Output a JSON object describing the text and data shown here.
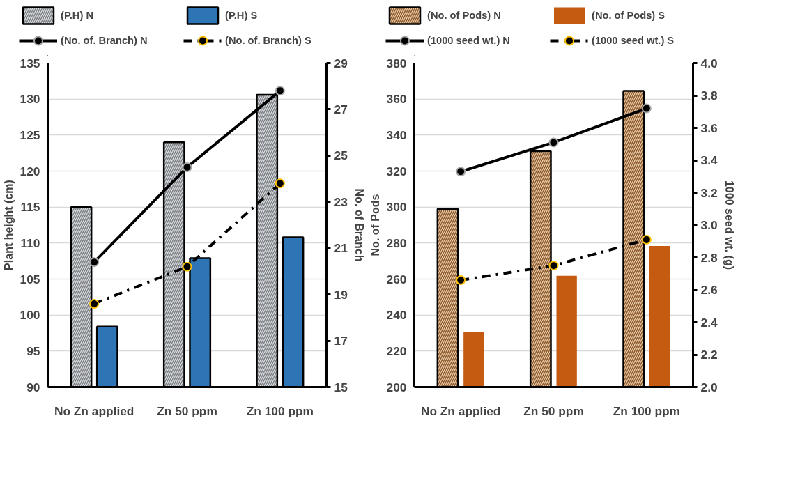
{
  "chart_data": [
    {
      "type": "bar",
      "categories": [
        "No Zn applied",
        "Zn 50 ppm",
        "Zn 100 ppm"
      ],
      "ylabel": "Plant height (cm)",
      "y2label": "No. of Branch",
      "ylim": [
        90,
        135
      ],
      "yticks": [
        90,
        95,
        100,
        105,
        110,
        115,
        120,
        125,
        130,
        135
      ],
      "y2lim": [
        15,
        29
      ],
      "y2ticks": [
        15,
        17,
        19,
        21,
        23,
        25,
        27,
        29
      ],
      "grid": "y",
      "legend": "top",
      "series": [
        {
          "name": "(P.H) N",
          "color": "#d6dce5",
          "values": [
            115,
            124,
            130.6
          ]
        },
        {
          "name": "(P.H) S",
          "color": "#2e75b6",
          "values": [
            98.4,
            107.9,
            110.8
          ]
        },
        {
          "name": "(No. of. Branch) N",
          "type": "line",
          "axis": "y2",
          "color": "#000000",
          "marker": "circle",
          "line_style": "solid",
          "values": [
            20.4,
            24.5,
            27.8
          ]
        },
        {
          "name": "(No. of. Branch) S",
          "type": "line",
          "axis": "y2",
          "color": "#000000",
          "marker": "circle",
          "line_style": "dashed",
          "values": [
            18.6,
            20.2,
            23.8
          ]
        }
      ]
    },
    {
      "type": "bar",
      "categories": [
        "No Zn applied",
        "Zn 50 ppm",
        "Zn 100 ppm"
      ],
      "ylabel": "No. of Pods",
      "y2label": "1000 seed wt. (g)",
      "ylim": [
        200,
        380
      ],
      "yticks": [
        200,
        220,
        240,
        260,
        280,
        300,
        320,
        340,
        360,
        380
      ],
      "y2lim": [
        2,
        4
      ],
      "y2ticks": [
        {
          "value": 2,
          "label": "2.0"
        },
        2.2,
        2.4,
        2.6,
        2.8,
        {
          "value": 3,
          "label": "3.0"
        },
        3.2,
        3.4,
        3.6,
        3.8,
        {
          "value": 4,
          "label": "4.0"
        }
      ],
      "grid": "y",
      "legend": "top",
      "series": [
        {
          "name": "(No. of Pods) N",
          "color": "#e7c9a9",
          "values": [
            299,
            331,
            364.5
          ]
        },
        {
          "name": "(No. of Pods) S",
          "color": "#c55a11",
          "values": [
            230.7,
            261.8,
            278.4
          ]
        },
        {
          "name": "(1000 seed wt.) N",
          "type": "line",
          "axis": "y2",
          "color": "#000000",
          "marker": "circle",
          "line_style": "solid",
          "values": [
            3.33,
            3.51,
            3.72
          ]
        },
        {
          "name": "(1000 seed wt.) S",
          "type": "line",
          "axis": "y2",
          "color": "#000000",
          "marker": "circle",
          "line_style": "dashed",
          "values": [
            2.66,
            2.75,
            2.91
          ]
        }
      ]
    }
  ]
}
